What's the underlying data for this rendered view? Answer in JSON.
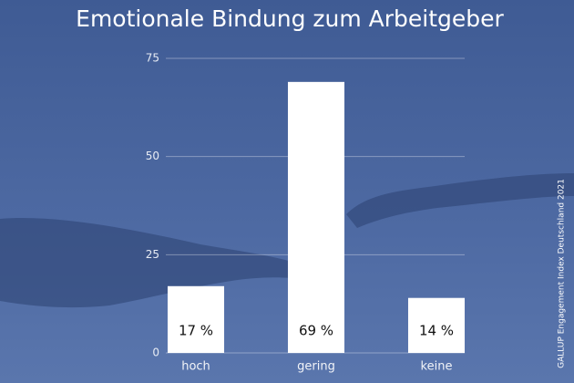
{
  "chart_data": {
    "type": "bar",
    "title": "Emotionale Bindung zum Arbeitgeber",
    "categories": [
      "hoch",
      "gering",
      "keine"
    ],
    "values": [
      17,
      69,
      14
    ],
    "value_labels": [
      "17 %",
      "69 %",
      "14 %"
    ],
    "color": "#ffffff",
    "ylim": [
      0,
      75
    ],
    "yticks": [
      0,
      25,
      50,
      75
    ],
    "grid": true,
    "source": "GALLUP Engagement Index Deutschland 2021"
  }
}
